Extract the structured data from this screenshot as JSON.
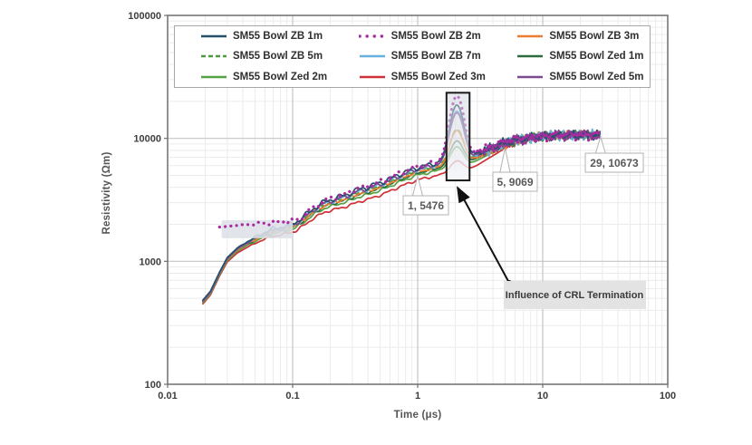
{
  "chart_data": {
    "type": "line",
    "title": "",
    "xlabel": "Time (μs)",
    "ylabel": "Resistivity (Ωm)",
    "x_scale": "log",
    "y_scale": "log",
    "xlim": [
      0.01,
      100
    ],
    "ylim": [
      100,
      100000
    ],
    "x_ticks": [
      "0.01",
      "0.1",
      "1",
      "10",
      "100"
    ],
    "y_ticks": [
      "100",
      "1000",
      "10000",
      "100000"
    ],
    "grid": "major+minor",
    "legend_position": "top-inside",
    "base_points": [
      [
        0.019,
        470
      ],
      [
        0.022,
        560
      ],
      [
        0.026,
        800
      ],
      [
        0.03,
        1050
      ],
      [
        0.036,
        1250
      ],
      [
        0.043,
        1400
      ],
      [
        0.052,
        1550
      ],
      [
        0.062,
        1700
      ],
      [
        0.075,
        1800
      ],
      [
        0.09,
        1880
      ],
      [
        0.105,
        1980
      ],
      [
        0.125,
        2250
      ],
      [
        0.15,
        2600
      ],
      [
        0.18,
        2900
      ],
      [
        0.22,
        3100
      ],
      [
        0.27,
        3300
      ],
      [
        0.33,
        3600
      ],
      [
        0.4,
        3800
      ],
      [
        0.5,
        4100
      ],
      [
        0.62,
        4500
      ],
      [
        0.75,
        4900
      ],
      [
        0.9,
        5250
      ],
      [
        1.0,
        5476
      ],
      [
        1.15,
        5650
      ],
      [
        1.3,
        5800
      ],
      [
        1.5,
        6000
      ],
      [
        2.05,
        6400
      ],
      [
        2.6,
        6700
      ],
      [
        3.0,
        7200
      ],
      [
        3.6,
        7800
      ],
      [
        4.3,
        8400
      ],
      [
        5.0,
        9069
      ],
      [
        6.0,
        9600
      ],
      [
        7.5,
        10000
      ],
      [
        9.0,
        10300
      ],
      [
        11,
        10500
      ],
      [
        14,
        10600
      ],
      [
        18,
        10700
      ],
      [
        23,
        10700
      ],
      [
        29,
        10673
      ]
    ],
    "series": [
      {
        "name": "SM55 Bowl ZB 1m",
        "color": "#24526b",
        "style": "solid",
        "mult": [
          1.02,
          1.06
        ],
        "peak": 2.75,
        "seed": 1,
        "mid_amp": 0.055,
        "tail_amp": 0.1,
        "noise_start": 2.7,
        "t0": 0.019
      },
      {
        "name": "SM55 Bowl ZB 2m",
        "color": "#a82ba0",
        "style": "dotted",
        "mult": [
          1.05,
          1.08
        ],
        "peak": 3.2,
        "seed": 2,
        "mid_amp": 0.05,
        "tail_amp": 0.1,
        "noise_start": 2.7,
        "t0": 0.026,
        "flat_early": true
      },
      {
        "name": "SM55 Bowl ZB 3m",
        "color": "#ed7d31",
        "style": "solid",
        "mult": [
          0.99,
          0.98
        ],
        "peak": 1.85,
        "seed": 3,
        "mid_amp": 0.03,
        "tail_amp": 0.09,
        "noise_start": 2.8,
        "t0": 0.019
      },
      {
        "name": "SM55 Bowl ZB 5m",
        "color": "#4f9a41",
        "style": "dashed",
        "mult": [
          1.01,
          1.0
        ],
        "peak": 1.85,
        "seed": 4,
        "mid_amp": 0.03,
        "tail_amp": 0.085,
        "noise_start": 3.0,
        "t0": 0.019
      },
      {
        "name": "SM55 Bowl ZB 7m",
        "color": "#66b1dd",
        "style": "solid",
        "mult": [
          1.0,
          1.02
        ],
        "peak": 2.55,
        "seed": 5,
        "mid_amp": 0.045,
        "tail_amp": 0.1,
        "noise_start": 2.7,
        "t0": 0.019
      },
      {
        "name": "SM55 Bowl Zed 1m",
        "color": "#2e6b3c",
        "style": "solid",
        "mult": [
          0.99,
          0.96
        ],
        "peak": 1.55,
        "seed": 6,
        "mid_amp": 0.03,
        "tail_amp": 0.08,
        "noise_start": 4.2,
        "t0": 0.019
      },
      {
        "name": "SM55 Bowl Zed 2m",
        "color": "#56a144",
        "style": "solid",
        "mult": [
          0.97,
          0.92
        ],
        "peak": 1.45,
        "seed": 7,
        "mid_amp": 0.028,
        "tail_amp": 0.08,
        "noise_start": 4.2,
        "t0": 0.019
      },
      {
        "name": "SM55 Bowl Zed 3m",
        "color": "#d03038",
        "style": "solid",
        "mult": [
          0.95,
          0.84
        ],
        "peak": 1.22,
        "seed": 8,
        "mid_amp": 0.025,
        "tail_amp": 0.07,
        "noise_start": 4.5,
        "t0": 0.019
      },
      {
        "name": "SM55 Bowl Zed 5m",
        "color": "#7a4a8f",
        "style": "solid",
        "mult": [
          1.0,
          1.03
        ],
        "peak": 2.45,
        "seed": 9,
        "mid_amp": 0.04,
        "tail_amp": 0.095,
        "noise_start": 2.7,
        "t0": 0.019
      }
    ],
    "annotations": {
      "callouts": [
        {
          "text": "1, 5476",
          "point": [
            1,
            5476
          ]
        },
        {
          "text": "5, 9069",
          "point": [
            5,
            9069
          ]
        },
        {
          "text": "29, 10673",
          "point": [
            29,
            10673
          ]
        }
      ],
      "note": {
        "text": "Influence of CRL Termination"
      },
      "spike_box": {
        "t_range": [
          1.7,
          2.6
        ],
        "r_range": [
          4550,
          23500
        ]
      },
      "early_highlight": {
        "t_range": [
          0.027,
          0.1
        ],
        "r_range": [
          1540,
          2160
        ]
      }
    },
    "colors": {
      "frame": "#6f6f6f",
      "major_grid": "#c4c4c4",
      "minor_grid": "#ebebeb",
      "tick_text": "#3d3d3d",
      "callout_border": "#b3b3b3",
      "callout_text": "#595959",
      "note_bg": "#e3e3e3",
      "note_text": "#3a3a3a",
      "arrow": "#111111"
    }
  }
}
